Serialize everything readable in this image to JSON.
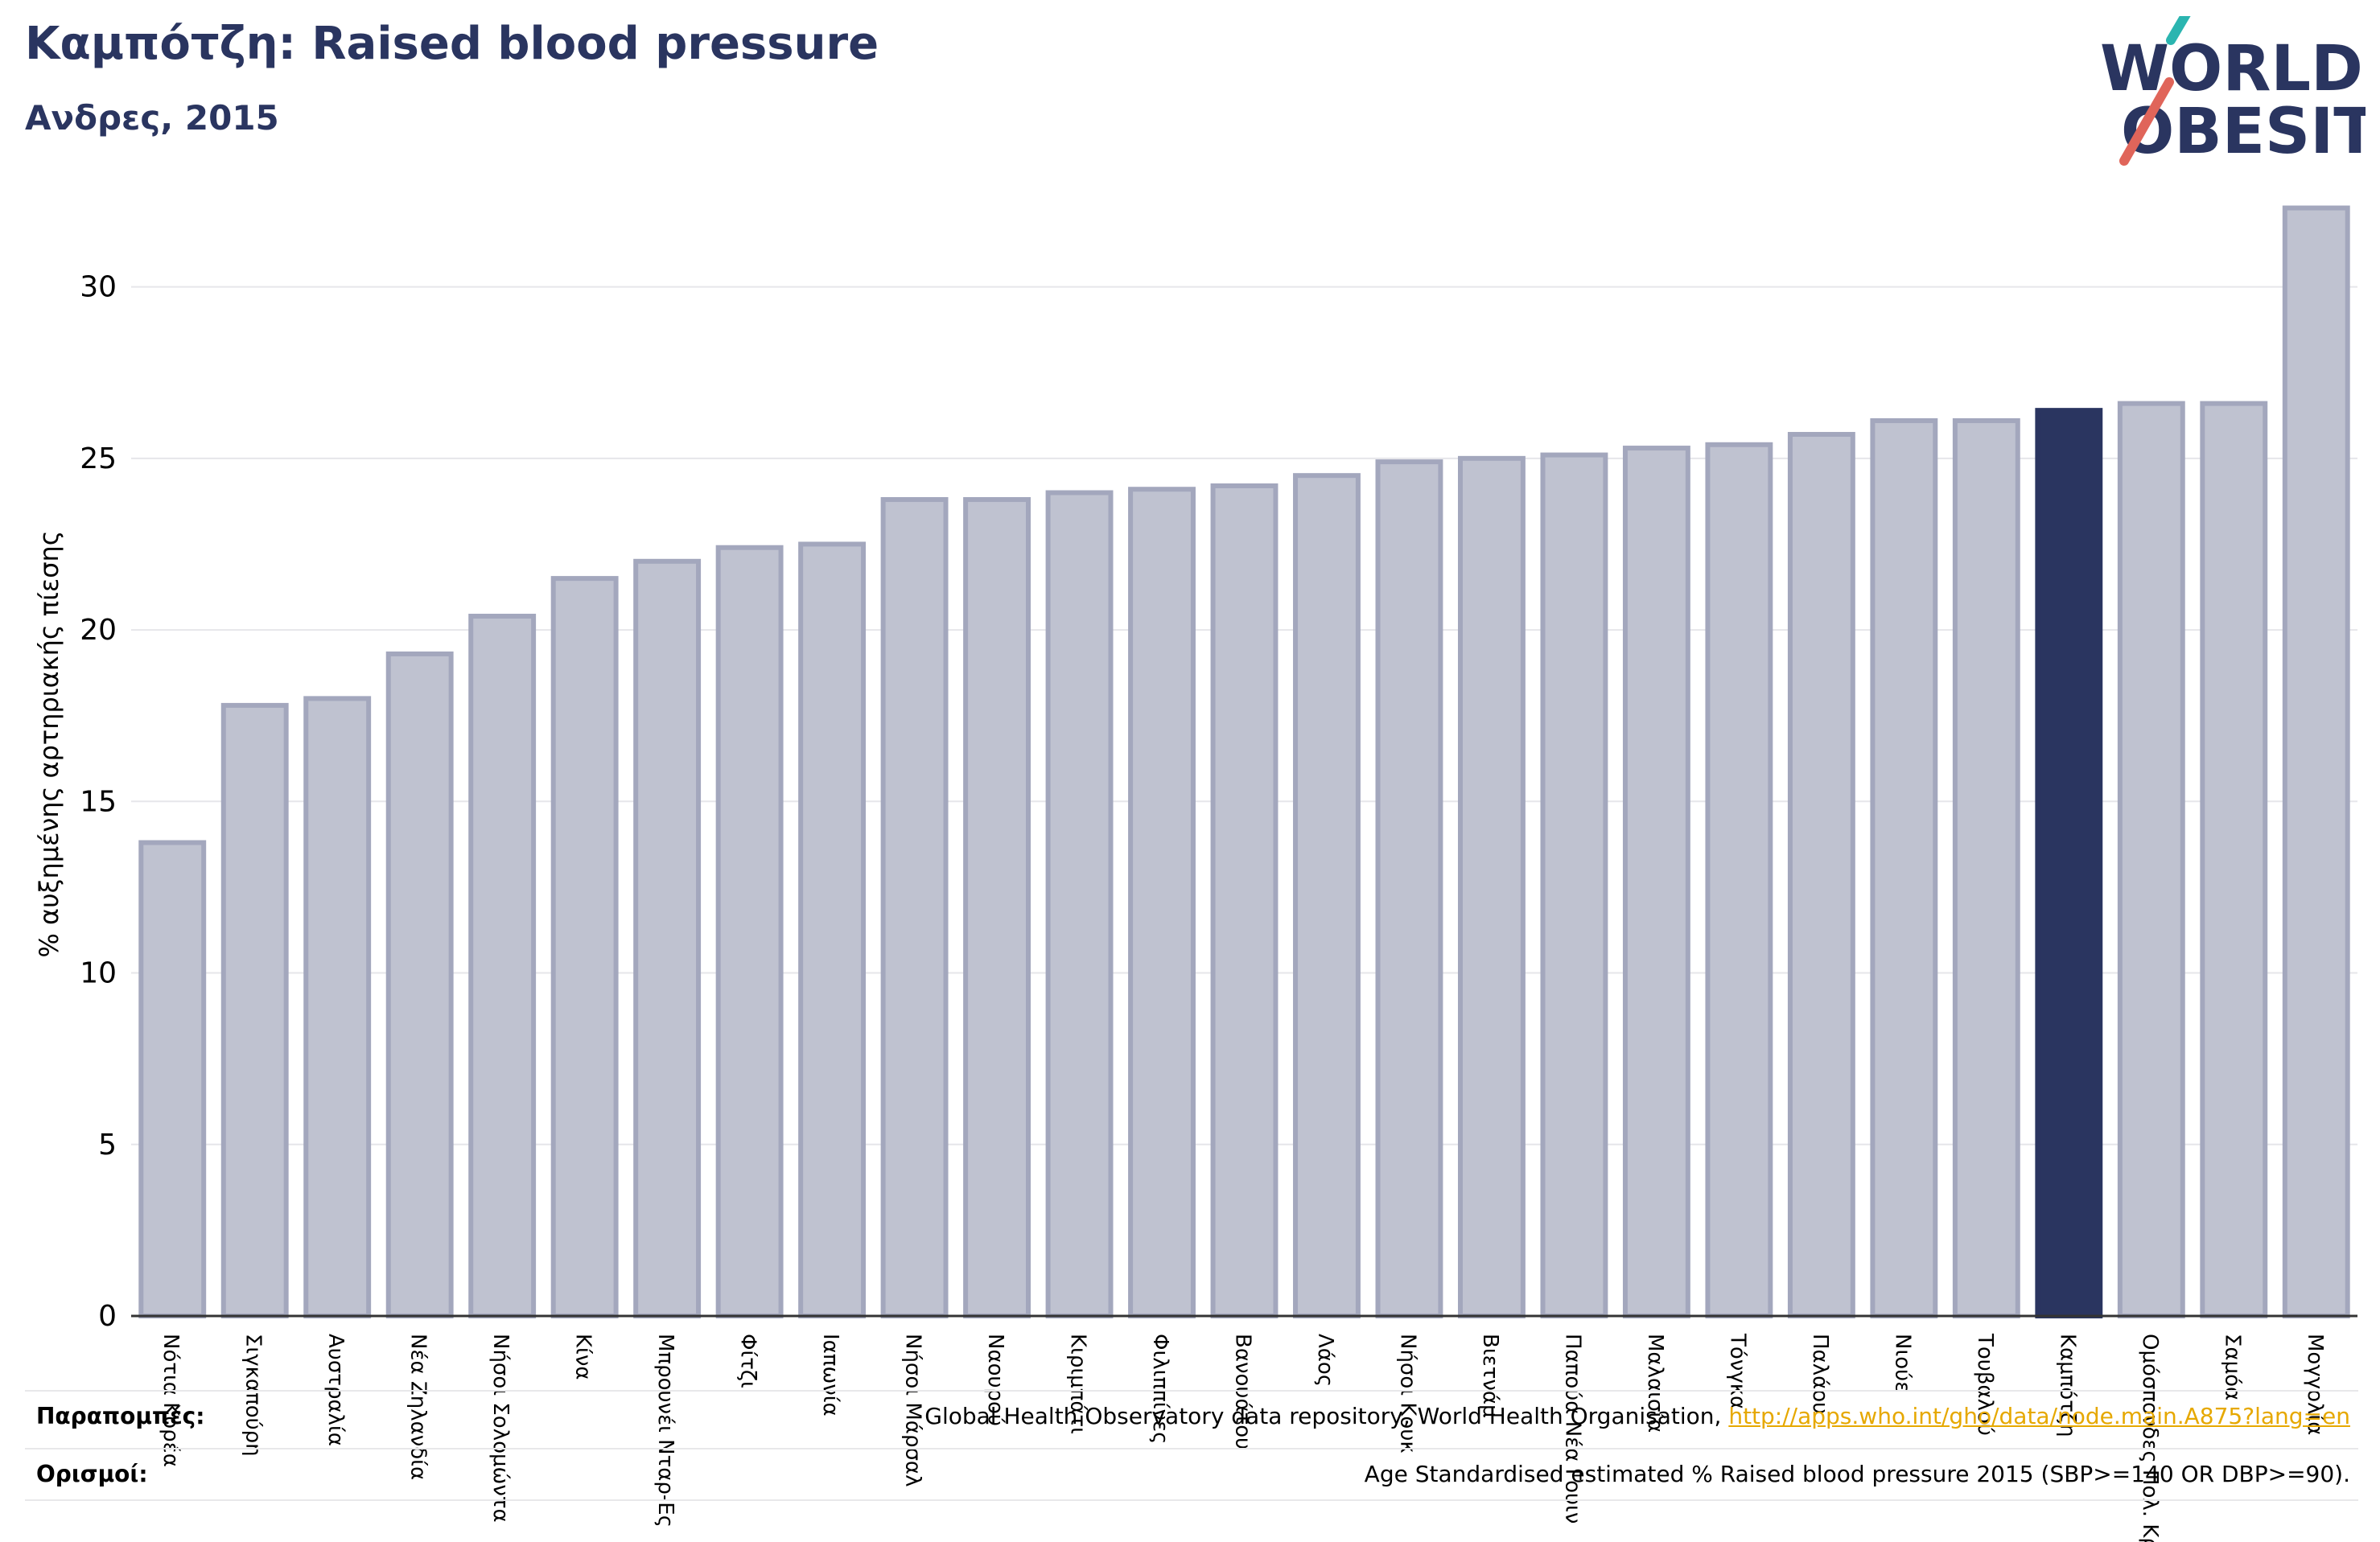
{
  "header": {
    "title": "Καμπότζη: Raised blood pressure",
    "subtitle": "Ανδρες, 2015"
  },
  "logo": {
    "line1": "WORLD",
    "line2": "OBESITY",
    "colors": {
      "text": "#2a3560",
      "slash_teal": "#2bb5b0",
      "slash_red": "#e0655a"
    }
  },
  "footer": {
    "sources_label": "Παραπομπές:",
    "sources_text": "Global Health Observatory data repository, World Health Organisation, ",
    "sources_link": "http://apps.who.int/gho/data/node.main.A875?lang=en",
    "definitions_label": "Ορισμοί:",
    "definitions_text": "Age Standardised estimated % Raised blood pressure 2015 (SBP>=140 OR DBP>=90)."
  },
  "colors": {
    "bar_fill": "#bfc2d0",
    "bar_edge": "#a3a7bd",
    "highlight": "#2a3560",
    "grid": "#e6e6ea",
    "axis": "#333333"
  },
  "chart_data": {
    "type": "bar",
    "title": "Καμπότζη: Raised blood pressure",
    "subtitle": "Ανδρες, 2015",
    "ylabel": "% αυξημένης αρτηριακής πίεσης",
    "xlabel": "",
    "ylim": [
      0,
      32.5
    ],
    "yticks": [
      0,
      5,
      10,
      15,
      20,
      25,
      30
    ],
    "grid": true,
    "highlight_category": "Καμπότζη",
    "categories": [
      "Νότια Κορέα",
      "Σιγκαπούρη",
      "Αυστραλία",
      "Νέα Ζηλανδία",
      "Νήσοι Σολομώντα",
      "Κίνα",
      "Μπρουνέι Νταρ-Ες",
      "Φίτζι",
      "Ιαπωνία",
      "Νήσοι Μάρσαλ",
      "Ναουρού",
      "Κιριμπάτι",
      "Φιλιππίνες",
      "Βανουάτου",
      "Λάος",
      "Νήσοι Κουκ",
      "Βιετνάμ",
      "Παπούα Νέα Γουιν",
      "Μαλαισία",
      "Τόνγκα",
      "Παλάου",
      "Νιούε",
      "Τουβαλού",
      "Καμπότζη",
      "Ομόσπονδες Πολ. Κρ",
      "Σαμόα",
      "Μογγολία"
    ],
    "values": [
      13.8,
      17.8,
      18.0,
      19.3,
      20.4,
      21.5,
      22.0,
      22.4,
      22.5,
      23.8,
      23.8,
      24.0,
      24.1,
      24.2,
      24.5,
      24.9,
      25.0,
      25.1,
      25.3,
      25.4,
      25.7,
      26.1,
      26.1,
      26.4,
      26.6,
      26.6,
      32.3
    ]
  }
}
